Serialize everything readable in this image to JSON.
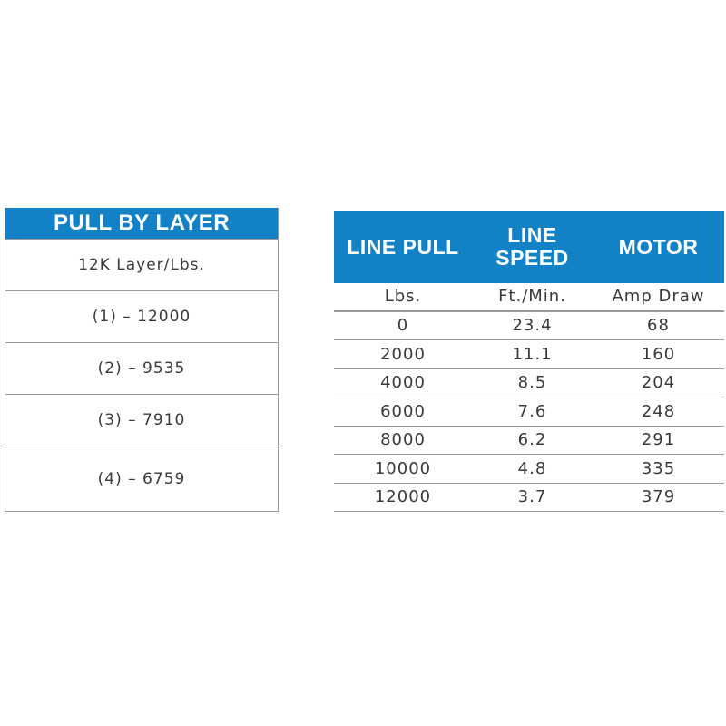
{
  "pull_by_layer": {
    "title": "PULL BY LAYER",
    "subtitle": "12K Layer/Lbs.",
    "rows": [
      "(1) – 12000",
      "(2) – 9535",
      "(3) – 7910",
      "(4) – 6759"
    ]
  },
  "performance": {
    "headers": [
      "LINE PULL",
      "LINE\nSPEED",
      "MOTOR"
    ],
    "units": [
      "Lbs.",
      "Ft./Min.",
      "Amp Draw"
    ],
    "rows": [
      [
        "0",
        "23.4",
        "68"
      ],
      [
        "2000",
        "11.1",
        "160"
      ],
      [
        "4000",
        "8.5",
        "204"
      ],
      [
        "6000",
        "7.6",
        "248"
      ],
      [
        "8000",
        "6.2",
        "291"
      ],
      [
        "10000",
        "4.8",
        "335"
      ],
      [
        "12000",
        "3.7",
        "379"
      ]
    ]
  },
  "colors": {
    "header_blue": "#1281c6"
  }
}
